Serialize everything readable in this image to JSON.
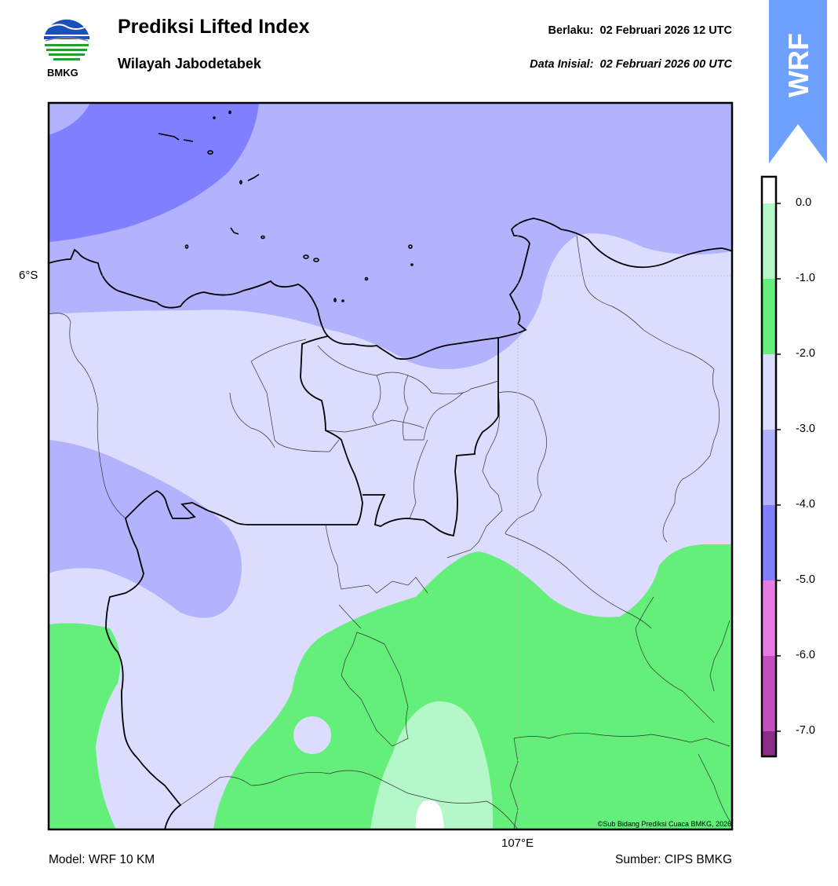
{
  "header": {
    "title": "Prediksi Lifted Index",
    "subtitle": "Wilayah Jabodetabek",
    "valid_label": "Berlaku:  02 Februari 2026 12 UTC",
    "init_label": "Data Inisial:  02 Februari 2026 00 UTC",
    "logo_text": "BMKG",
    "badge": "WRF"
  },
  "map": {
    "lat_label": "6°S",
    "lon_label": "107°E",
    "copyright": "©Sub Bidang Prediksi Cuaca BMKG, 2026"
  },
  "colorbar": {
    "ticks": [
      "0.0",
      "-1.0",
      "-2.0",
      "-3.0",
      "-4.0",
      "-5.0",
      "-6.0",
      "-7.0"
    ],
    "colors": [
      "#b4f7c8",
      "#63ef7a",
      "#dcdcff",
      "#b2b2ff",
      "#7f7fff",
      "#ea7be3",
      "#c64ec1",
      "#8e2c8a"
    ]
  },
  "footer": {
    "model": "Model: WRF 10 KM",
    "source": "Sumber: CIPS BMKG"
  },
  "colors": {
    "band_neg5_neg4": "#7f7fff",
    "band_neg4_neg3": "#b2b2ff",
    "band_neg3_neg2": "#dcdcff",
    "band_neg1_0": "#63ef7a",
    "band_0_1": "#b4f7c8",
    "badge_blue": "#6ea0ff"
  }
}
